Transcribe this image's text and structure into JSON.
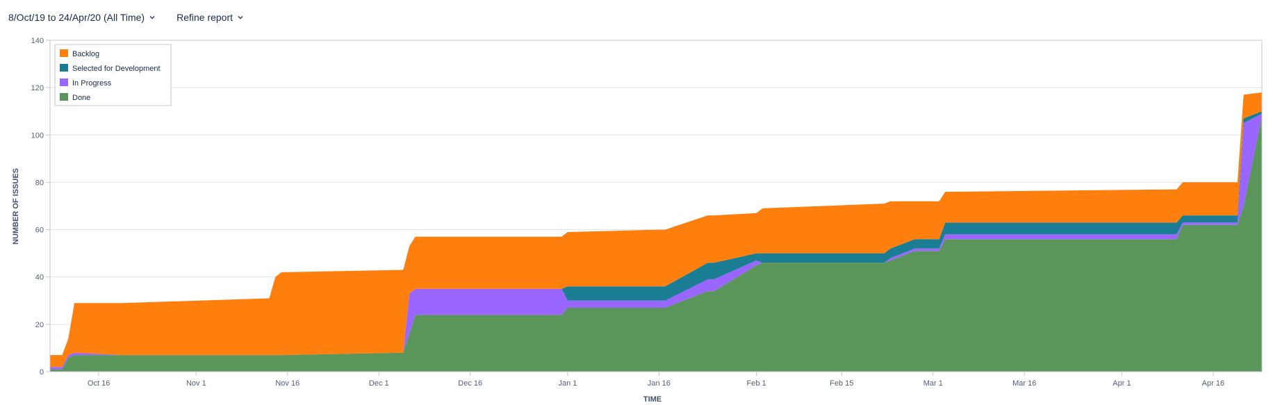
{
  "toolbar": {
    "date_range_label": "8/Oct/19 to 24/Apr/20 (All Time)",
    "refine_label": "Refine report",
    "chevron_icon": "chevron-down-icon"
  },
  "chart_data": {
    "type": "area",
    "stacked": true,
    "xlabel": "TIME",
    "ylabel": "NUMBER OF ISSUES",
    "ylim": [
      0,
      140
    ],
    "yticks": [
      0,
      20,
      40,
      60,
      80,
      100,
      120,
      140
    ],
    "x_range": [
      "2019-10-08",
      "2020-04-24"
    ],
    "x_ticks": [
      {
        "date": "2019-10-16",
        "label": "Oct 16"
      },
      {
        "date": "2019-11-01",
        "label": "Nov 1"
      },
      {
        "date": "2019-11-16",
        "label": "Nov 16"
      },
      {
        "date": "2019-12-01",
        "label": "Dec 1"
      },
      {
        "date": "2019-12-16",
        "label": "Dec 16"
      },
      {
        "date": "2020-01-01",
        "label": "Jan 1"
      },
      {
        "date": "2020-01-16",
        "label": "Jan 16"
      },
      {
        "date": "2020-02-01",
        "label": "Feb 1"
      },
      {
        "date": "2020-02-15",
        "label": "Feb 15"
      },
      {
        "date": "2020-03-01",
        "label": "Mar 1"
      },
      {
        "date": "2020-03-16",
        "label": "Mar 16"
      },
      {
        "date": "2020-04-01",
        "label": "Apr 1"
      },
      {
        "date": "2020-04-16",
        "label": "Apr 16"
      }
    ],
    "grid": true,
    "legend_position": "top-left",
    "x": [
      "2019-10-08",
      "2019-10-10",
      "2019-10-11",
      "2019-10-12",
      "2019-10-20",
      "2019-11-13",
      "2019-11-14",
      "2019-11-15",
      "2019-12-05",
      "2019-12-06",
      "2019-12-07",
      "2019-12-31",
      "2020-01-01",
      "2020-01-16",
      "2020-01-17",
      "2020-01-24",
      "2020-01-25",
      "2020-02-01",
      "2020-02-02",
      "2020-02-22",
      "2020-02-23",
      "2020-02-27",
      "2020-03-02",
      "2020-03-03",
      "2020-04-10",
      "2020-04-11",
      "2020-04-20",
      "2020-04-21",
      "2020-04-24"
    ],
    "series": [
      {
        "name": "Done",
        "color": "#5a955a",
        "values": [
          1,
          1,
          6,
          7,
          7,
          7,
          7,
          7,
          8,
          16,
          24,
          24,
          27,
          27,
          27,
          34,
          34,
          45,
          46,
          46,
          47,
          51,
          51,
          56,
          56,
          62,
          62,
          70,
          108
        ]
      },
      {
        "name": "In Progress",
        "color": "#9966ff",
        "values": [
          1,
          1,
          1,
          1,
          0,
          0,
          0,
          0,
          0,
          17,
          11,
          11,
          3,
          3,
          3,
          5,
          5,
          2,
          0,
          0,
          1,
          1,
          1,
          2,
          2,
          1,
          1,
          35,
          1
        ]
      },
      {
        "name": "Selected for Development",
        "color": "#1a7d93",
        "values": [
          0,
          0,
          0,
          0,
          0,
          0,
          0,
          0,
          0,
          0,
          0,
          0,
          6,
          6,
          6,
          7,
          7,
          3,
          4,
          4,
          4,
          4,
          4,
          5,
          5,
          3,
          3,
          2,
          1
        ]
      },
      {
        "name": "Backlog",
        "color": "#ff7f0e",
        "values": [
          5,
          5,
          7,
          21,
          22,
          24,
          33,
          35,
          35,
          20,
          22,
          22,
          23,
          24,
          24,
          20,
          20,
          17,
          19,
          21,
          20,
          16,
          16,
          13,
          14,
          14,
          14,
          10,
          8
        ]
      }
    ]
  }
}
